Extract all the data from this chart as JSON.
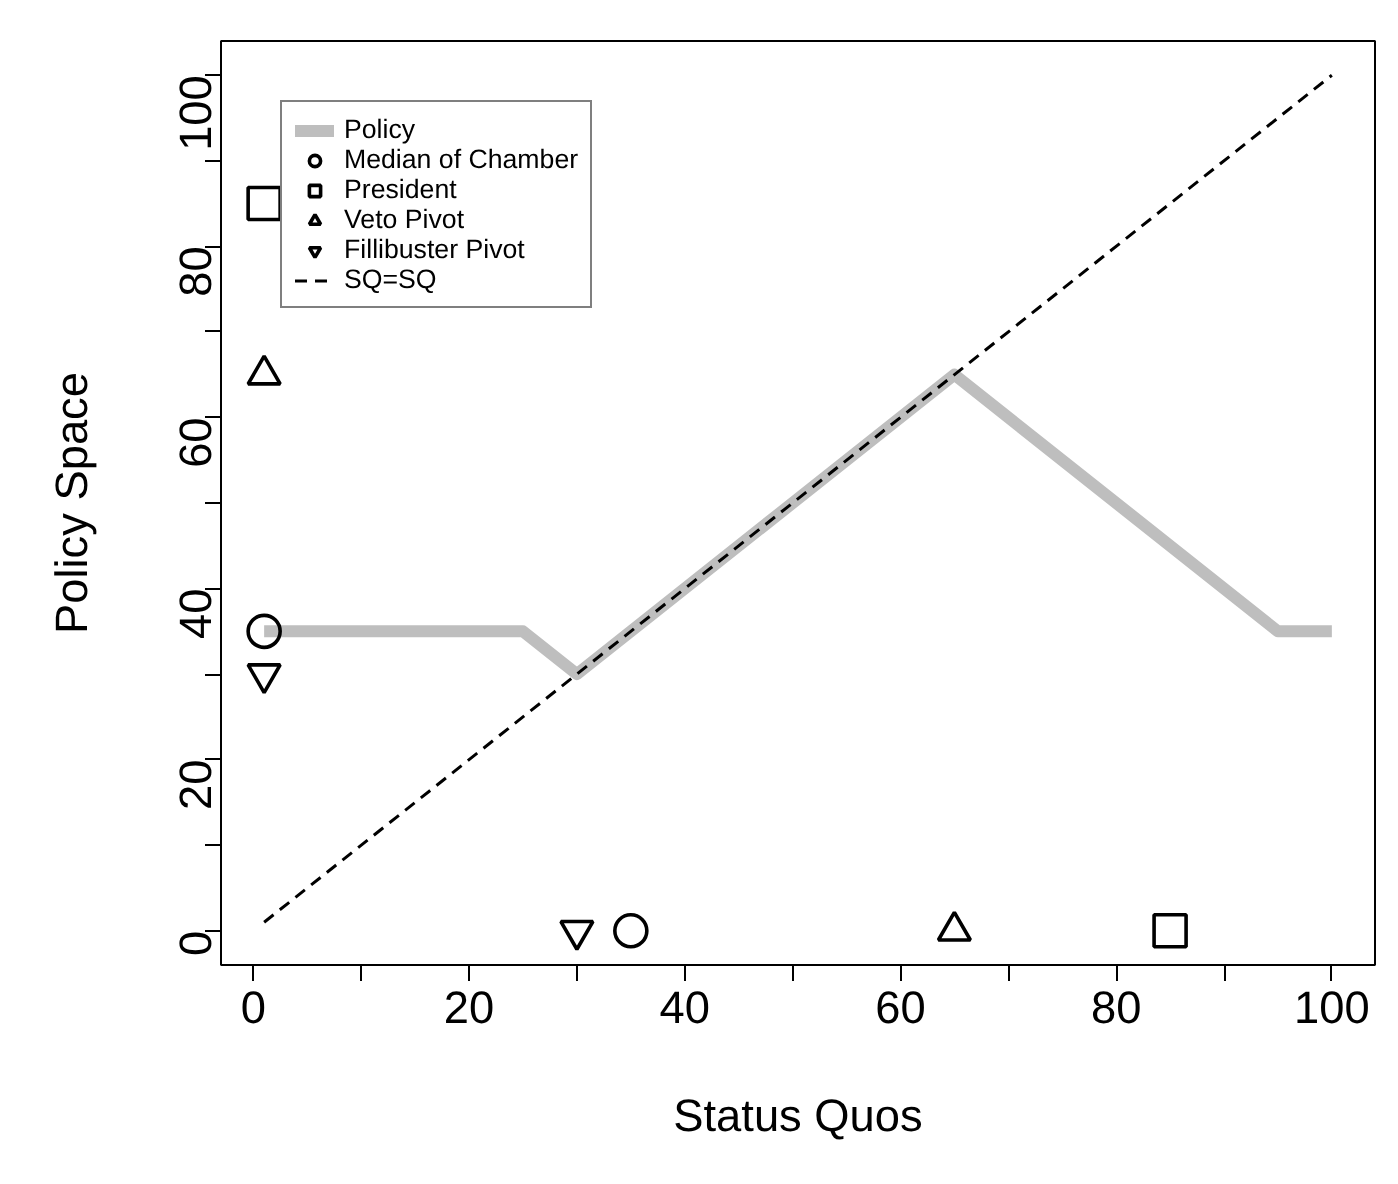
{
  "chart_data": {
    "type": "line",
    "xlabel": "Status Quos",
    "ylabel": "Policy Space",
    "xlim": [
      -3,
      104
    ],
    "ylim": [
      -4,
      104
    ],
    "xticks": [
      0,
      {
        "value": 10,
        "label": null
      },
      20,
      {
        "value": 30,
        "label": null
      },
      40,
      {
        "value": 50,
        "label": null
      },
      60,
      {
        "value": 70,
        "label": null
      },
      80,
      {
        "value": 90,
        "label": null
      },
      100
    ],
    "yticks": [
      0,
      {
        "value": 10,
        "label": null
      },
      20,
      {
        "value": 30,
        "label": null
      },
      40,
      {
        "value": 50,
        "label": null
      },
      60,
      {
        "value": 70,
        "label": null
      },
      80,
      {
        "value": 90,
        "label": null
      },
      100
    ],
    "grid": false,
    "legend": "top left",
    "series": [
      {
        "name": "Policy",
        "color": "#bebebe",
        "line_style": "solid",
        "x": [
          1,
          25,
          30,
          65,
          95,
          100
        ],
        "values": [
          35,
          35,
          30,
          65,
          35,
          35
        ]
      },
      {
        "name": "Median of Chamber",
        "type": "scatter",
        "color": "#000000",
        "marker": "circle",
        "x": [
          1,
          35
        ],
        "values": [
          35,
          0
        ]
      },
      {
        "name": "President",
        "type": "scatter",
        "color": "#000000",
        "marker": "square",
        "x": [
          1,
          85
        ],
        "values": [
          85,
          0
        ]
      },
      {
        "name": "Veto Pivot",
        "type": "scatter",
        "color": "#000000",
        "marker": "triangle",
        "x": [
          1,
          65
        ],
        "values": [
          65,
          0
        ]
      },
      {
        "name": "Fillibuster Pivot",
        "type": "scatter",
        "color": "#000000",
        "x": [
          1,
          30
        ],
        "values": [
          30,
          0
        ]
      },
      {
        "name": "SQ=SQ",
        "color": "#000000",
        "line_style": "dashed",
        "x": [
          1,
          100
        ],
        "values": [
          1,
          100
        ]
      }
    ]
  }
}
